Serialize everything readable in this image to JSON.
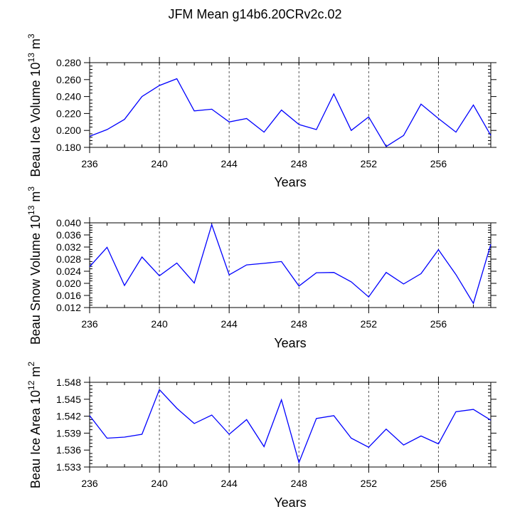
{
  "figure_title": "JFM Mean g14b6.20CRv2c.02",
  "chart_data": [
    {
      "type": "line",
      "title": "",
      "xlabel": "Years",
      "ylabel": "Beau Ice Volume 10",
      "ylabel_exp": "13",
      "ylabel_unit": " m",
      "ylabel_unit_exp": "3",
      "xlim": [
        236,
        259
      ],
      "ylim": [
        0.18,
        0.28
      ],
      "x_ticks": [
        236,
        240,
        244,
        248,
        252,
        256
      ],
      "y_ticks": [
        "0.180",
        "0.200",
        "0.220",
        "0.240",
        "0.260",
        "0.280"
      ],
      "y_tick_values": [
        0.18,
        0.2,
        0.22,
        0.24,
        0.26,
        0.28
      ],
      "grid": "vertical dashed at major x ticks",
      "line_color": "#0000ff",
      "x": [
        236,
        237,
        238,
        239,
        240,
        241,
        242,
        243,
        244,
        245,
        246,
        247,
        248,
        249,
        250,
        251,
        252,
        253,
        254,
        255,
        256,
        257,
        258,
        259
      ],
      "values": [
        0.193,
        0.201,
        0.213,
        0.24,
        0.253,
        0.261,
        0.223,
        0.225,
        0.21,
        0.214,
        0.198,
        0.224,
        0.207,
        0.201,
        0.243,
        0.2,
        0.216,
        0.181,
        0.194,
        0.231,
        0.214,
        0.198,
        0.23,
        0.194
      ]
    },
    {
      "type": "line",
      "title": "",
      "xlabel": "Years",
      "ylabel": "Beau Snow Volume 10",
      "ylabel_exp": "13",
      "ylabel_unit": " m",
      "ylabel_unit_exp": "3",
      "xlim": [
        236,
        259
      ],
      "ylim": [
        0.012,
        0.04
      ],
      "x_ticks": [
        236,
        240,
        244,
        248,
        252,
        256
      ],
      "y_ticks": [
        "0.012",
        "0.016",
        "0.020",
        "0.024",
        "0.028",
        "0.032",
        "0.036",
        "0.040"
      ],
      "y_tick_values": [
        0.012,
        0.016,
        0.02,
        0.024,
        0.028,
        0.032,
        0.036,
        0.04
      ],
      "grid": "vertical dashed at major x ticks",
      "line_color": "#0000ff",
      "x": [
        236,
        237,
        238,
        239,
        240,
        241,
        242,
        243,
        244,
        245,
        246,
        247,
        248,
        249,
        250,
        251,
        252,
        253,
        254,
        255,
        256,
        257,
        258,
        259
      ],
      "values": [
        0.0255,
        0.0319,
        0.0193,
        0.0287,
        0.0225,
        0.0267,
        0.0201,
        0.0394,
        0.0228,
        0.0261,
        0.0266,
        0.0272,
        0.0191,
        0.0235,
        0.0236,
        0.0205,
        0.0155,
        0.0236,
        0.0198,
        0.0232,
        0.0311,
        0.0229,
        0.0134,
        0.0329
      ]
    },
    {
      "type": "line",
      "title": "",
      "xlabel": "Years",
      "ylabel": "Beau Ice Area 10",
      "ylabel_exp": "12",
      "ylabel_unit": " m",
      "ylabel_unit_exp": "2",
      "xlim": [
        236,
        259
      ],
      "ylim": [
        1.533,
        1.548
      ],
      "x_ticks": [
        236,
        240,
        244,
        248,
        252,
        256
      ],
      "y_ticks": [
        "1.533",
        "1.536",
        "1.539",
        "1.542",
        "1.545",
        "1.548"
      ],
      "y_tick_values": [
        1.533,
        1.536,
        1.539,
        1.542,
        1.545,
        1.548
      ],
      "grid": "vertical dashed at major x ticks",
      "line_color": "#0000ff",
      "x": [
        236,
        237,
        238,
        239,
        240,
        241,
        242,
        243,
        244,
        245,
        246,
        247,
        248,
        249,
        250,
        251,
        252,
        253,
        254,
        255,
        256,
        257,
        258,
        259
      ],
      "values": [
        1.5421,
        1.5381,
        1.5383,
        1.5388,
        1.5467,
        1.5434,
        1.5407,
        1.5422,
        1.5388,
        1.5414,
        1.5366,
        1.5449,
        1.5338,
        1.5416,
        1.5421,
        1.5381,
        1.5365,
        1.5397,
        1.5369,
        1.5385,
        1.5371,
        1.5428,
        1.5432,
        1.5413
      ]
    }
  ]
}
